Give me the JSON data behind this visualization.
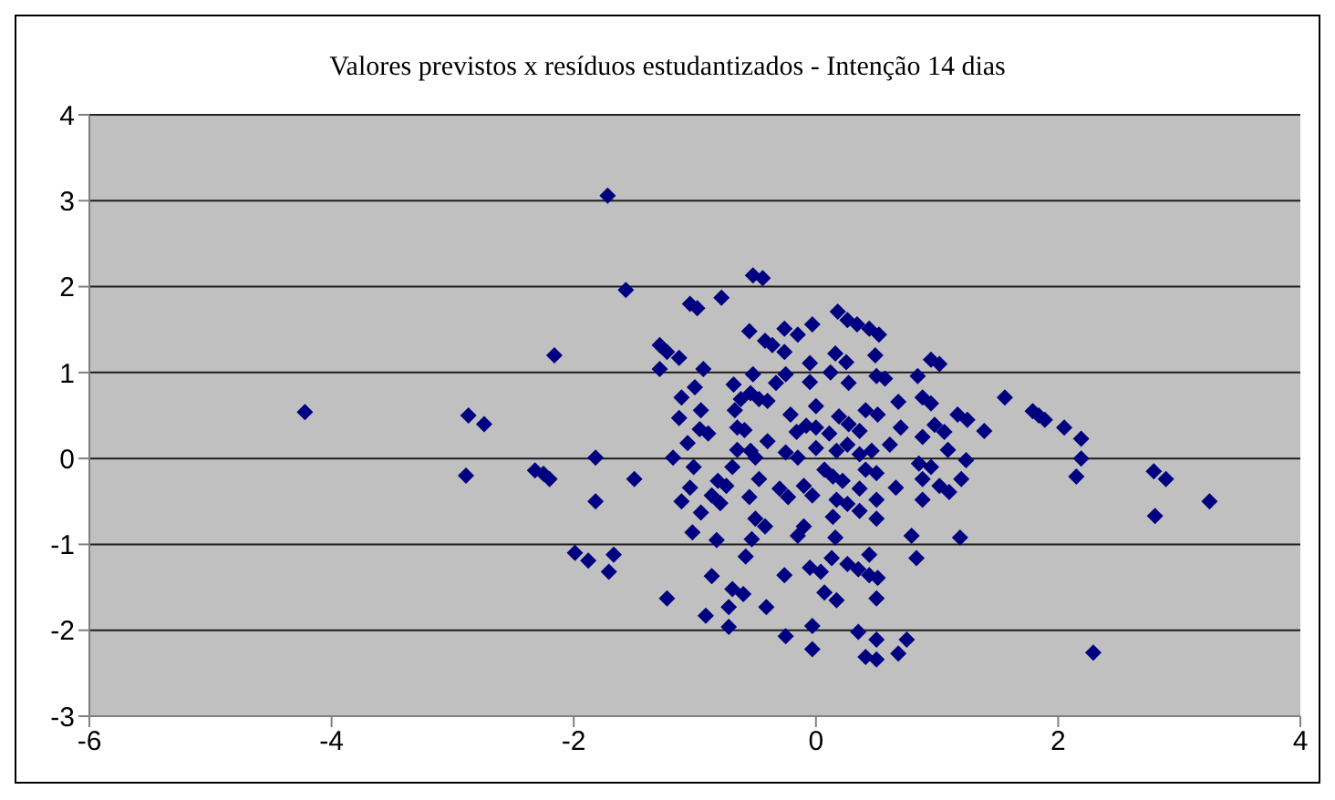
{
  "chart_data": {
    "type": "scatter",
    "title": "Valores previstos x resíduos estudantizados - Intenção 14 dias",
    "xlim": [
      -6,
      4
    ],
    "xticks": [
      -6,
      -4,
      -2,
      0,
      2,
      4
    ],
    "ylim": [
      -3,
      4
    ],
    "yticks": [
      -3,
      -2,
      -1,
      0,
      1,
      2,
      3,
      4
    ],
    "grid": "y",
    "marker": "diamond",
    "legend": false,
    "series": [
      {
        "color": "#000080",
        "x": [
          -1.72,
          -2.16,
          -4.22,
          -2.87,
          -2.74,
          -2.89,
          -2.32,
          -2.25,
          -2.2,
          -1.82,
          -1.82,
          -1.99,
          -1.88,
          -1.71,
          -1.57,
          -1.5,
          -1.67,
          -1.23,
          -1.29,
          -1.23,
          -1.13,
          -1.29,
          -1.04,
          -0.98,
          -0.78,
          -0.93,
          -1.0,
          -1.11,
          -0.95,
          -1.13,
          -0.96,
          -0.89,
          -1.06,
          -1.18,
          -1.01,
          -1.04,
          -1.11,
          -0.95,
          -0.81,
          -0.74,
          -0.86,
          -0.79,
          -1.02,
          -0.82,
          -0.86,
          -0.91,
          -0.72,
          -0.69,
          -0.6,
          -0.72,
          -0.55,
          -0.52,
          -0.44,
          -0.42,
          -0.36,
          -0.26,
          -0.15,
          -0.03,
          -0.26,
          -0.52,
          -0.25,
          -0.05,
          -0.05,
          -0.68,
          -0.62,
          -0.54,
          -0.47,
          -0.4,
          -0.33,
          -0.67,
          -0.59,
          -0.65,
          -0.4,
          -0.21,
          -0.16,
          -0.08,
          -0.65,
          -0.54,
          -0.5,
          -0.25,
          -0.15,
          -0.69,
          -0.47,
          -0.55,
          -0.3,
          -0.23,
          -0.1,
          -0.03,
          -0.5,
          -0.42,
          -0.53,
          -0.58,
          -0.15,
          -0.1,
          -0.26,
          -0.05,
          -0.41,
          -0.25,
          -0.03,
          -0.03,
          0.18,
          0.26,
          0.34,
          0.44,
          0.52,
          0.16,
          0.25,
          0.49,
          0.12,
          0.27,
          0.5,
          0.57,
          0.95,
          1.02,
          0.84,
          0.88,
          0.95,
          0.68,
          1.56,
          0.0,
          0.19,
          0.27,
          0.36,
          0.41,
          0.51,
          0.7,
          0.88,
          0.98,
          1.06,
          1.17,
          1.25,
          1.39,
          1.09,
          1.24,
          0.0,
          0.11,
          0.0,
          0.17,
          0.26,
          0.36,
          0.46,
          0.61,
          0.5,
          0.41,
          0.07,
          0.14,
          0.22,
          0.36,
          0.66,
          0.85,
          0.88,
          0.95,
          1.02,
          1.1,
          1.2,
          0.88,
          0.5,
          0.17,
          0.26,
          0.36,
          0.5,
          0.14,
          0.16,
          0.79,
          0.83,
          1.19,
          0.44,
          0.13,
          0.04,
          0.26,
          0.35,
          0.44,
          0.51,
          0.5,
          0.07,
          0.17,
          0.35,
          0.5,
          0.41,
          0.5,
          0.68,
          0.75,
          1.79,
          1.84,
          1.89,
          2.05,
          2.19,
          2.19,
          2.15,
          2.79,
          2.89,
          2.8,
          3.25,
          2.29
        ],
        "values": [
          3.06,
          1.2,
          0.54,
          0.5,
          0.4,
          -0.2,
          -0.14,
          -0.18,
          -0.24,
          0.01,
          -0.5,
          -1.1,
          -1.19,
          -1.32,
          1.96,
          -0.24,
          -1.12,
          -1.63,
          1.32,
          1.24,
          1.17,
          1.04,
          1.8,
          1.75,
          1.87,
          1.04,
          0.83,
          0.71,
          0.56,
          0.47,
          0.34,
          0.29,
          0.18,
          0.01,
          -0.1,
          -0.34,
          -0.5,
          -0.63,
          -0.26,
          -0.32,
          -0.43,
          -0.52,
          -0.86,
          -0.95,
          -1.37,
          -1.83,
          -1.73,
          -1.52,
          -1.58,
          -1.96,
          1.48,
          2.13,
          2.1,
          1.37,
          1.32,
          1.51,
          1.44,
          1.56,
          1.24,
          0.98,
          0.98,
          1.11,
          0.89,
          0.86,
          0.69,
          0.76,
          0.69,
          0.67,
          0.88,
          0.56,
          0.33,
          0.36,
          0.2,
          0.51,
          0.31,
          0.38,
          0.1,
          0.09,
          0.01,
          0.07,
          0.01,
          -0.1,
          -0.24,
          -0.45,
          -0.35,
          -0.45,
          -0.32,
          -0.43,
          -0.7,
          -0.79,
          -0.94,
          -1.14,
          -0.9,
          -0.79,
          -1.36,
          -1.27,
          -1.73,
          -2.07,
          -1.95,
          -2.22,
          1.71,
          1.61,
          1.56,
          1.51,
          1.44,
          1.22,
          1.12,
          1.2,
          1.0,
          0.88,
          0.96,
          0.93,
          1.15,
          1.1,
          0.96,
          0.71,
          0.64,
          0.66,
          0.71,
          0.61,
          0.49,
          0.4,
          0.32,
          0.56,
          0.51,
          0.36,
          0.25,
          0.39,
          0.31,
          0.51,
          0.45,
          0.32,
          0.1,
          -0.02,
          0.36,
          0.29,
          0.12,
          0.09,
          0.16,
          0.05,
          0.09,
          0.16,
          -0.17,
          -0.13,
          -0.13,
          -0.21,
          -0.26,
          -0.35,
          -0.34,
          -0.06,
          -0.24,
          -0.1,
          -0.32,
          -0.39,
          -0.24,
          -0.48,
          -0.48,
          -0.48,
          -0.53,
          -0.61,
          -0.7,
          -0.68,
          -0.92,
          -0.9,
          -1.16,
          -0.92,
          -1.12,
          -1.16,
          -1.32,
          -1.23,
          -1.29,
          -1.36,
          -1.39,
          -1.63,
          -1.56,
          -1.65,
          -2.02,
          -2.11,
          -2.31,
          -2.34,
          -2.27,
          -2.11,
          0.55,
          0.5,
          0.45,
          0.36,
          0.23,
          0.0,
          -0.21,
          -0.15,
          -0.24,
          -0.67,
          -0.5,
          -2.26
        ]
      }
    ]
  }
}
